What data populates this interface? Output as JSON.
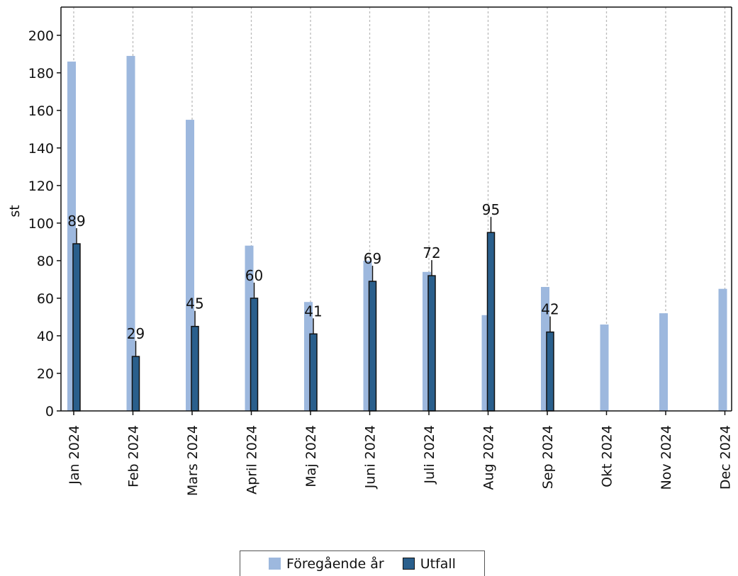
{
  "chart_data": {
    "type": "bar",
    "categories": [
      "Jan 2024",
      "Feb 2024",
      "Mars 2024",
      "April 2024",
      "Maj 2024",
      "Juni 2024",
      "Juli 2024",
      "Aug 2024",
      "Sep 2024",
      "Okt 2024",
      "Nov 2024",
      "Dec 2024"
    ],
    "series": [
      {
        "name": "Föregående år",
        "values": [
          186,
          189,
          155,
          88,
          58,
          80,
          74,
          51,
          66,
          46,
          52,
          65
        ]
      },
      {
        "name": "Utfall",
        "values": [
          89,
          29,
          45,
          60,
          41,
          69,
          72,
          95,
          42,
          null,
          null,
          null
        ]
      }
    ],
    "data_labels": [
      "89",
      "29",
      "45",
      "60",
      "41",
      "69",
      "72",
      "95",
      "42"
    ],
    "yticks": [
      "0",
      "20",
      "40",
      "60",
      "80",
      "100",
      "120",
      "140",
      "160",
      "180",
      "200"
    ],
    "ylim": [
      0,
      215
    ],
    "ylabel": "st",
    "xlabel": "",
    "title": "",
    "grid": "vertical dotted",
    "legend_position": "bottom-center",
    "colors": {
      "previous": "#9db8de",
      "outcome": "#2a5f8c",
      "outline": "#111111",
      "grid": "#bbbbbb"
    }
  }
}
